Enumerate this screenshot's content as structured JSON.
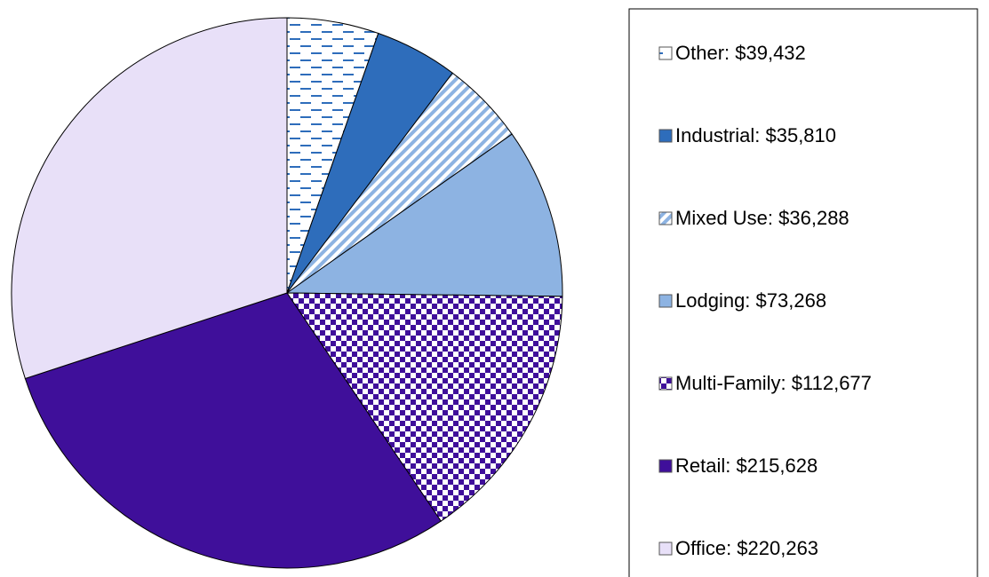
{
  "chart_data": {
    "type": "pie",
    "categories": [
      "Other: $39,432",
      "Industrial: $35,810",
      "Mixed Use: $36,288",
      "Lodging: $73,268",
      "Multi-Family: $112,677",
      "Retail: $215,628",
      "Office: $220,263"
    ],
    "values": [
      39432,
      35810,
      36288,
      73268,
      112677,
      215628,
      220263
    ],
    "colors": [
      "#2e6dbb",
      "#2e6dbb",
      "#8db3e2",
      "#8db3e2",
      "#3f0f9a",
      "#3f0f9a",
      "#e8e0f8"
    ],
    "patterns": [
      "dash",
      null,
      "diagonal",
      null,
      "checker",
      null,
      null
    ],
    "legend": "right"
  }
}
